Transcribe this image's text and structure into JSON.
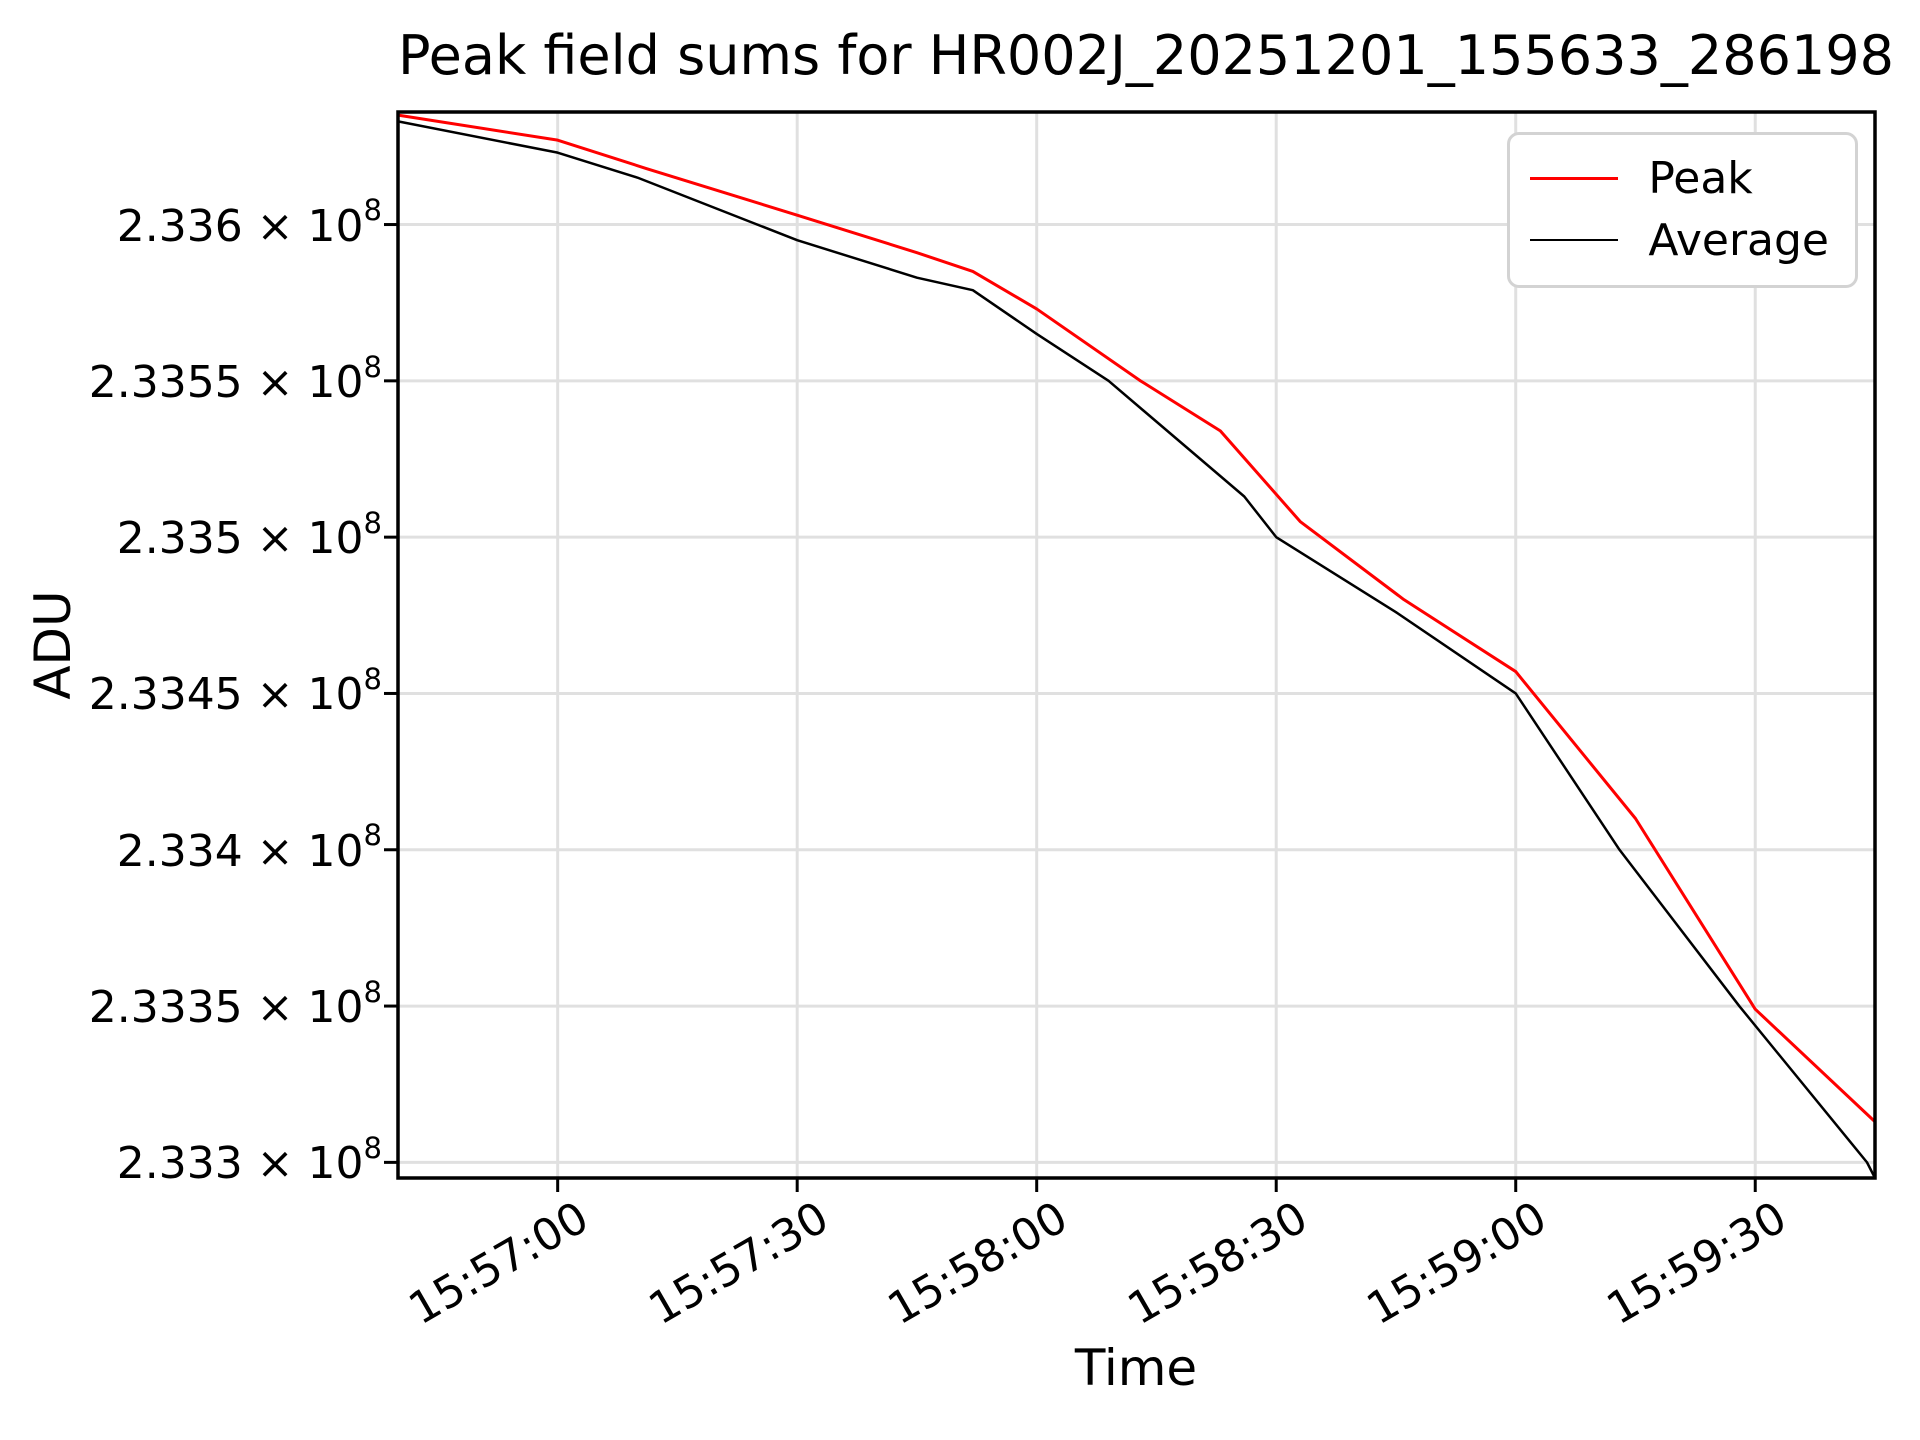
{
  "chart_data": {
    "type": "line",
    "title": "Peak field sums for HR002J_20251201_155633_286198",
    "xlabel": "Time",
    "ylabel": "ADU",
    "grid": true,
    "legend": {
      "position": "upper right"
    },
    "xlim": [
      0,
      185
    ],
    "ylim": [
      233295000,
      233636000
    ],
    "x_ticks": [
      {
        "label": "15:57:00",
        "t": 20
      },
      {
        "label": "15:57:30",
        "t": 50
      },
      {
        "label": "15:58:00",
        "t": 80
      },
      {
        "label": "15:58:30",
        "t": 110
      },
      {
        "label": "15:59:00",
        "t": 140
      },
      {
        "label": "15:59:30",
        "t": 170
      }
    ],
    "y_ticks": [
      {
        "mantissa": "2.336 × 10",
        "sup": "8",
        "value": 233600000
      },
      {
        "mantissa": "2.3355 × 10",
        "sup": "8",
        "value": 233550000
      },
      {
        "mantissa": "2.335 × 10",
        "sup": "8",
        "value": 233500000
      },
      {
        "mantissa": "2.3345 × 10",
        "sup": "8",
        "value": 233450000
      },
      {
        "mantissa": "2.334 × 10",
        "sup": "8",
        "value": 233400000
      },
      {
        "mantissa": "2.3335 × 10",
        "sup": "8",
        "value": 233350000
      },
      {
        "mantissa": "2.333 × 10",
        "sup": "8",
        "value": 233300000
      }
    ],
    "series": [
      {
        "name": "Average",
        "color": "#000000",
        "width": 2.5,
        "points": [
          [
            0,
            233633000
          ],
          [
            20,
            233623000
          ],
          [
            30,
            233615000
          ],
          [
            50,
            233595000
          ],
          [
            65,
            233583000
          ],
          [
            72,
            233579000
          ],
          [
            80,
            233565000
          ],
          [
            89,
            233550000
          ],
          [
            106,
            233513000
          ],
          [
            110,
            233500000
          ],
          [
            125,
            233476000
          ],
          [
            140,
            233450000
          ],
          [
            153,
            233400000
          ],
          [
            168,
            233350000
          ],
          [
            184,
            233300000
          ],
          [
            185,
            233295000
          ]
        ]
      },
      {
        "name": "Peak",
        "color": "#ff0000",
        "width": 3,
        "points": [
          [
            0,
            233635000
          ],
          [
            20,
            233627000
          ],
          [
            31,
            233618000
          ],
          [
            50,
            233603000
          ],
          [
            65,
            233591000
          ],
          [
            72,
            233585000
          ],
          [
            80,
            233573000
          ],
          [
            93,
            233550000
          ],
          [
            103,
            233534000
          ],
          [
            113,
            233505000
          ],
          [
            126,
            233480000
          ],
          [
            140,
            233457000
          ],
          [
            155,
            233410000
          ],
          [
            170,
            233349000
          ],
          [
            185,
            233313000
          ]
        ]
      }
    ],
    "legend_order": [
      "Peak",
      "Average"
    ]
  },
  "colors": {
    "grid": "#e0e0e0",
    "spine": "#000000",
    "legend_border": "#d3d3d3",
    "background": "#ffffff"
  }
}
